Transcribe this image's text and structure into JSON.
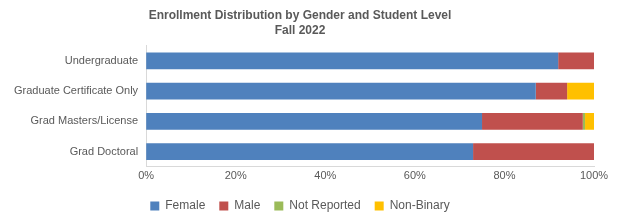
{
  "chart_data": {
    "type": "bar",
    "title": "Enrollment Distribution by Gender and Student Level",
    "subtitle": "Fall 2022",
    "orientation": "horizontal",
    "stacked": true,
    "grid": false,
    "legend": "bottom",
    "categories": [
      "Undergraduate",
      "Graduate Certificate Only",
      "Grad Masters/License",
      "Grad Doctoral"
    ],
    "series": [
      {
        "name": "Female",
        "color": "#4f81bd",
        "values": [
          92,
          87,
          75,
          73
        ]
      },
      {
        "name": "Male",
        "color": "#c0504d",
        "values": [
          8,
          7,
          22.5,
          27
        ]
      },
      {
        "name": "Not Reported",
        "color": "#9bbb59",
        "values": [
          0,
          0,
          0.5,
          0
        ]
      },
      {
        "name": "Non-Binary",
        "color": "#ffc000",
        "values": [
          0,
          6,
          2,
          0
        ]
      }
    ],
    "xlim": [
      0,
      100
    ],
    "xticks": [
      {
        "value": 0,
        "label": "0%"
      },
      {
        "value": 20,
        "label": "20%"
      },
      {
        "value": 40,
        "label": "40%"
      },
      {
        "value": 60,
        "label": "60%"
      },
      {
        "value": 80,
        "label": "80%"
      },
      {
        "value": 100,
        "label": "100%"
      }
    ]
  }
}
